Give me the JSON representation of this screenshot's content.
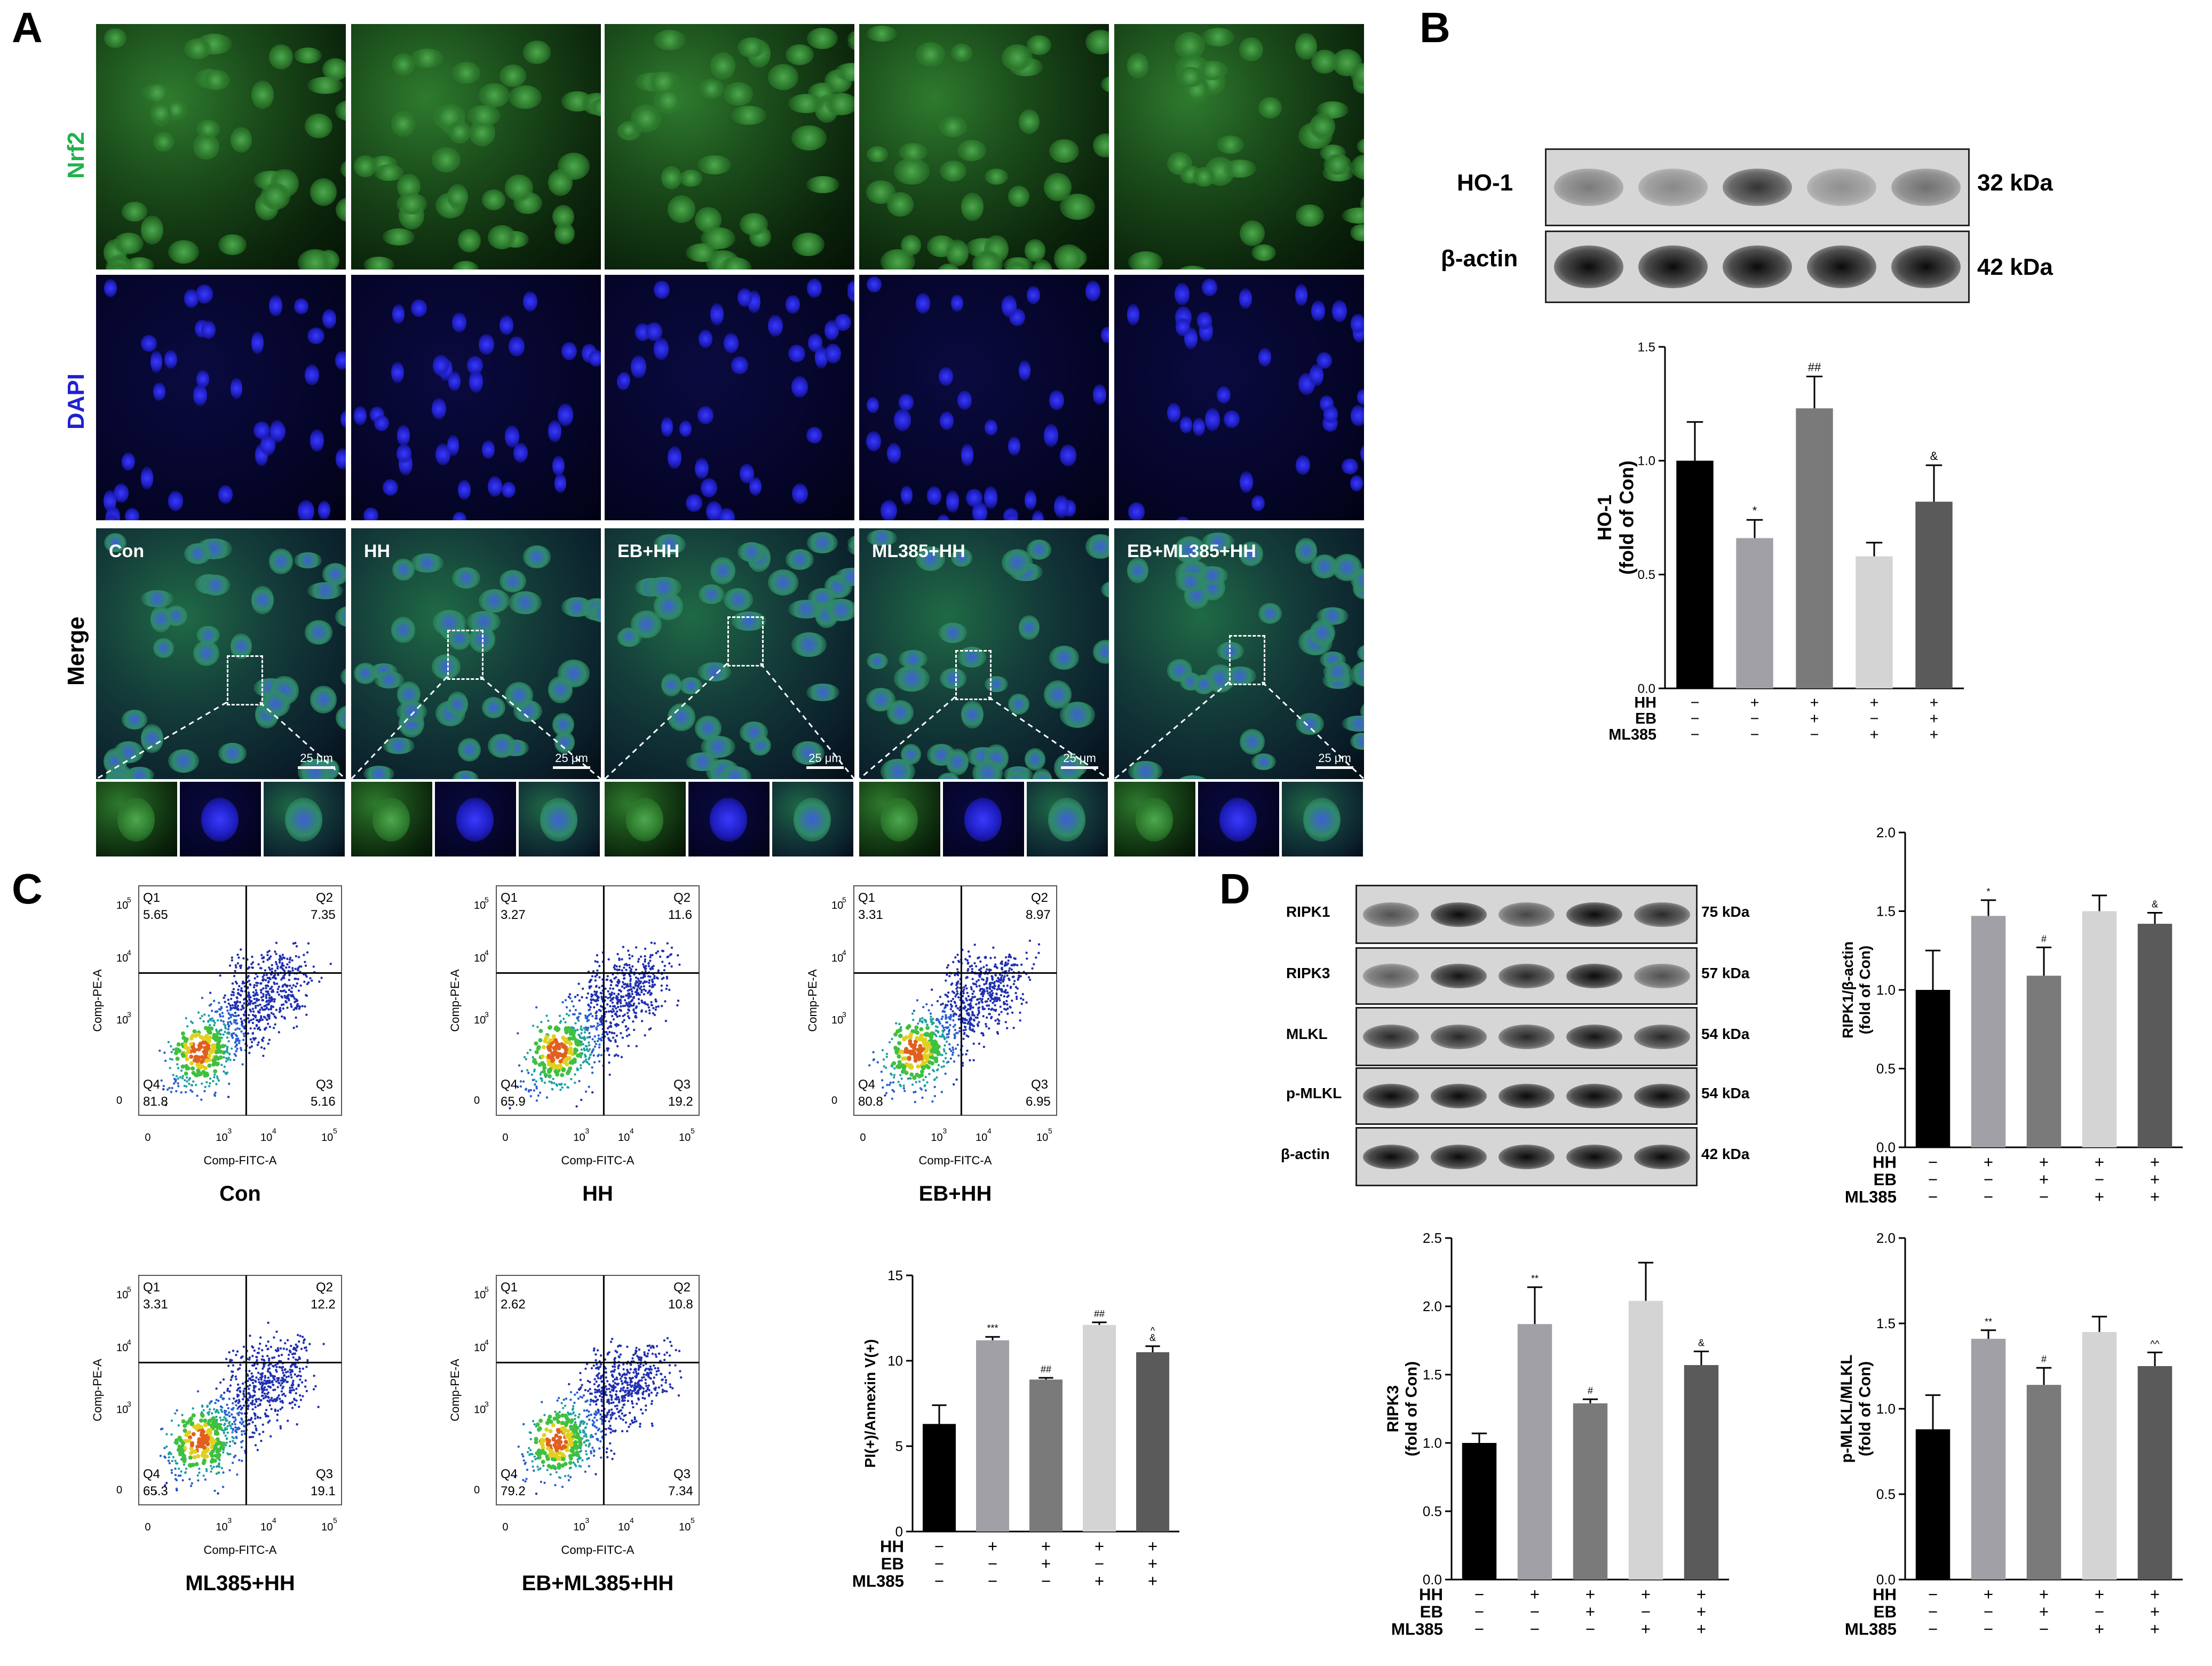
{
  "panels": {
    "a": "A",
    "b": "B",
    "c": "C",
    "d": "D"
  },
  "panelA": {
    "row_labels": [
      "Nrf2",
      "DAPI",
      "Merge"
    ],
    "groups": [
      "Con",
      "HH",
      "EB+HH",
      "ML385+HH",
      "EB+ML385+HH"
    ],
    "scale_bar": "25 μm"
  },
  "panelB": {
    "blot_labels": [
      "HO-1",
      "β-actin"
    ],
    "kda": [
      "32 kDa",
      "42 kDa"
    ]
  },
  "panelD": {
    "blot_labels": [
      "RIPK1",
      "RIPK3",
      "MLKL",
      "p-MLKL",
      "β-actin"
    ],
    "kda": [
      "75 kDa",
      "57 kDa",
      "54 kDa",
      "54 kDa",
      "42 kDa"
    ]
  },
  "treatment_rows": [
    "HH",
    "EB",
    "ML385"
  ],
  "treatment_signs": [
    [
      "−",
      "+",
      "+",
      "+",
      "+"
    ],
    [
      "−",
      "−",
      "+",
      "−",
      "+"
    ],
    [
      "−",
      "−",
      "−",
      "+",
      "+"
    ]
  ],
  "bar_colors": [
    "#000000",
    "#a0a0a6",
    "#7a7a7a",
    "#d4d4d4",
    "#5a5a5a"
  ],
  "flow": {
    "ylabel": "Comp-PE-A",
    "xlabel": "Comp-FITC-A",
    "quadrants": [
      "Q1",
      "Q2",
      "Q3",
      "Q4"
    ],
    "ticks": [
      "0",
      "10",
      "3",
      "4",
      "5"
    ],
    "plots": [
      {
        "name": "Con",
        "q1": "5.65",
        "q2": "7.35",
        "q3": "5.16",
        "q4": "81.8"
      },
      {
        "name": "HH",
        "q1": "3.27",
        "q2": "11.6",
        "q3": "19.2",
        "q4": "65.9"
      },
      {
        "name": "EB+HH",
        "q1": "3.31",
        "q2": "8.97",
        "q3": "6.95",
        "q4": "80.8"
      },
      {
        "name": "ML385+HH",
        "q1": "3.31",
        "q2": "12.2",
        "q3": "19.1",
        "q4": "65.3"
      },
      {
        "name": "EB+ML385+HH",
        "q1": "2.62",
        "q2": "10.8",
        "q3": "7.34",
        "q4": "79.2"
      }
    ]
  },
  "chart_data": [
    {
      "type": "bar",
      "panel": "B",
      "ylabel": [
        "HO-1",
        "(fold of Con)"
      ],
      "ylim": [
        0,
        1.5
      ],
      "yticks": [
        "0.0",
        "0.5",
        "1.0",
        "1.5"
      ],
      "values": [
        1.0,
        0.66,
        1.23,
        0.58,
        0.82
      ],
      "errors": [
        0.17,
        0.08,
        0.14,
        0.06,
        0.16
      ],
      "annotations": [
        "",
        "*",
        "##",
        "",
        "&"
      ]
    },
    {
      "type": "bar",
      "panel": "C",
      "ylabel": [
        "PI(+)/Annexin V(+)"
      ],
      "ylim": [
        0,
        15
      ],
      "yticks": [
        "0",
        "5",
        "10",
        "15"
      ],
      "values": [
        6.3,
        11.2,
        8.9,
        12.1,
        10.5
      ],
      "errors": [
        1.1,
        0.2,
        0.1,
        0.15,
        0.35
      ],
      "annotations": [
        "",
        "***",
        "##",
        "##",
        "^\n&"
      ]
    },
    {
      "type": "bar",
      "panel": "D-RIPK1",
      "ylabel": [
        "RIPK1/β-actin",
        "(fold of Con)"
      ],
      "ylim": [
        0,
        2.0
      ],
      "yticks": [
        "0.0",
        "0.5",
        "1.0",
        "1.5",
        "2.0"
      ],
      "values": [
        1.0,
        1.47,
        1.09,
        1.5,
        1.42
      ],
      "errors": [
        0.25,
        0.1,
        0.18,
        0.1,
        0.07
      ],
      "annotations": [
        "",
        "*",
        "#",
        "",
        "&"
      ]
    },
    {
      "type": "bar",
      "panel": "D-RIPK3",
      "ylabel": [
        "RIPK3",
        "(fold of Con)"
      ],
      "ylim": [
        0,
        2.5
      ],
      "yticks": [
        "0.0",
        "0.5",
        "1.0",
        "1.5",
        "2.0",
        "2.5"
      ],
      "values": [
        1.0,
        1.87,
        1.29,
        2.04,
        1.57
      ],
      "errors": [
        0.07,
        0.27,
        0.03,
        0.28,
        0.1
      ],
      "annotations": [
        "",
        "**",
        "#",
        "",
        "&"
      ]
    },
    {
      "type": "bar",
      "panel": "D-pMLKL",
      "ylabel": [
        "p-MLKL/MLKL",
        "(fold of Con)"
      ],
      "ylim": [
        0,
        2.0
      ],
      "yticks": [
        "0.0",
        "0.5",
        "1.0",
        "1.5",
        "2.0"
      ],
      "values": [
        0.88,
        1.41,
        1.14,
        1.45,
        1.25
      ],
      "errors": [
        0.2,
        0.05,
        0.1,
        0.09,
        0.08
      ],
      "annotations": [
        "",
        "**",
        "#",
        "",
        "^^"
      ]
    }
  ]
}
